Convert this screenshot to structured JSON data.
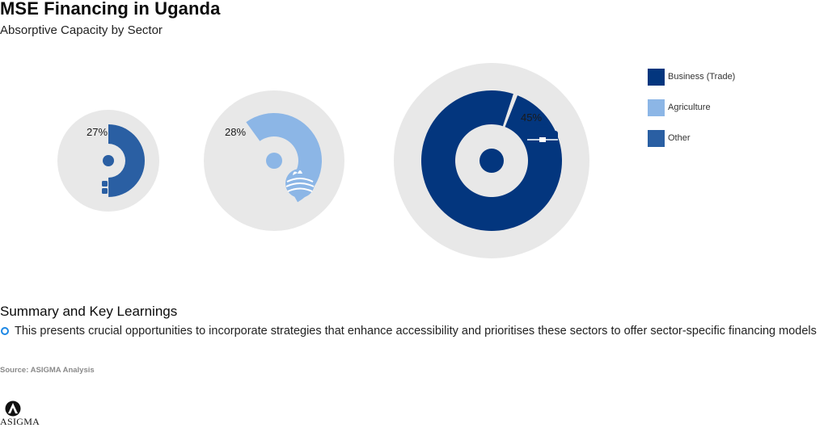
{
  "header": {
    "title": "MSE Financing in Uganda",
    "subtitle": "Absorptive Capacity by Sector"
  },
  "chart_data": {
    "type": "pie",
    "title": "MSE Financing in Uganda",
    "subtitle": "Absorptive Capacity by Sector",
    "categories": [
      "Other",
      "Agriculture",
      "Business (Trade)"
    ],
    "values": [
      27,
      28,
      45
    ],
    "labels": [
      "27%",
      "28%",
      "45%"
    ],
    "colors": [
      "#2a5fa3",
      "#8cb6e6",
      "#03367e"
    ],
    "icons": [
      "apps-add-icon",
      "farm-field-icon",
      "briefcase-icon"
    ],
    "legend_position": "top-right",
    "legend": [
      {
        "label": "Business (Trade)",
        "color": "#03367e"
      },
      {
        "label": "Agriculture",
        "color": "#8cb6e6"
      },
      {
        "label": "Other",
        "color": "#2a5fa3"
      }
    ]
  },
  "summary": {
    "heading": "Summary and Key Learnings",
    "points": [
      "This presents crucial opportunities to incorporate strategies that enhance accessibility and prioritises these sectors to offer sector-specific financing models"
    ]
  },
  "source": "Source: ASIGMA Analysis",
  "logo": {
    "text": "ASIGMA"
  }
}
